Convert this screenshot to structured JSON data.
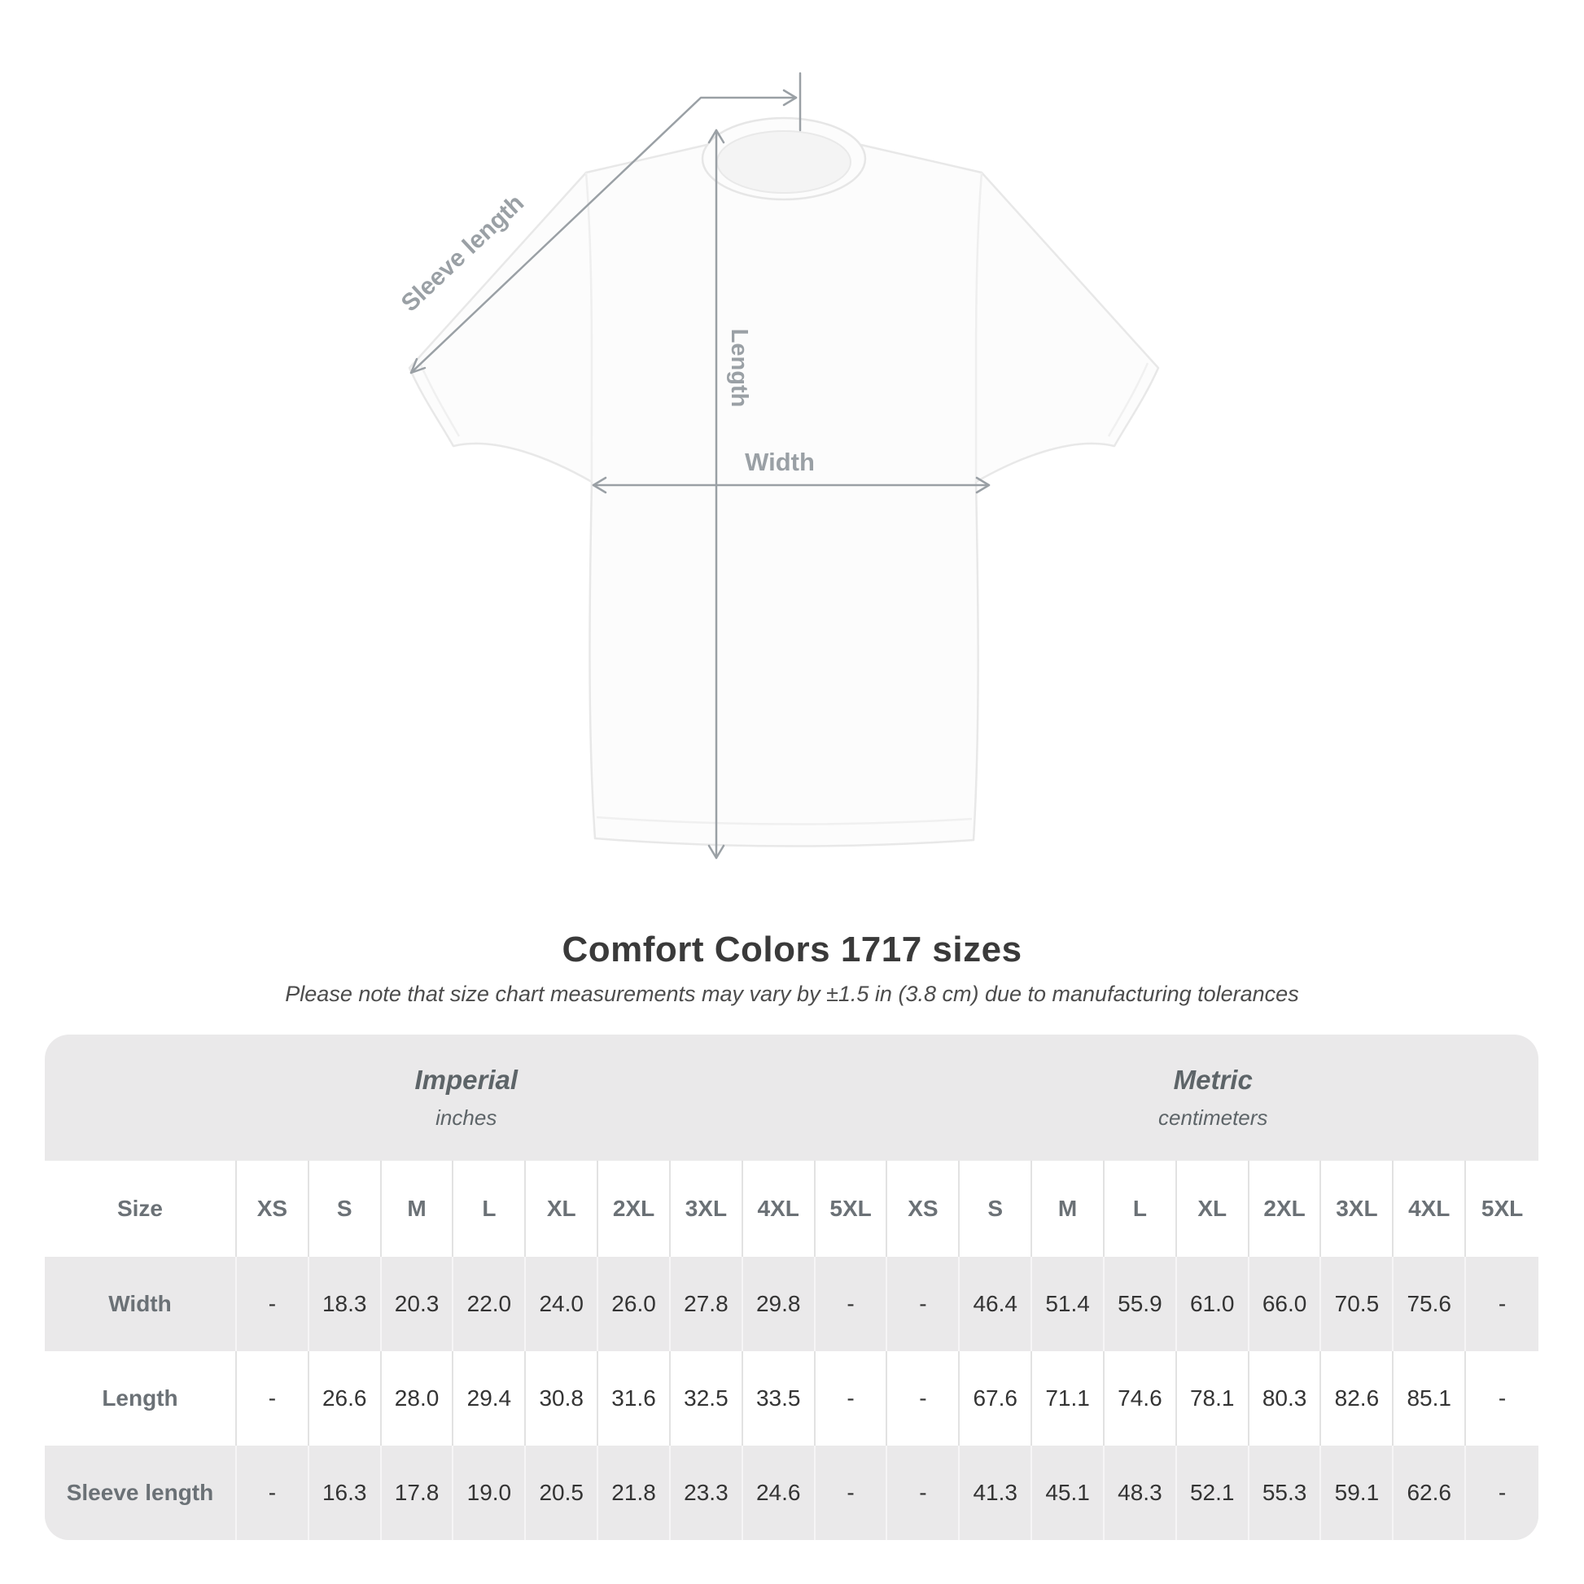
{
  "diagram": {
    "sleeve_length_label": "Sleeve length",
    "length_label": "Length",
    "width_label": "Width"
  },
  "title": "Comfort Colors 1717 sizes",
  "subtitle": "Please note that size chart measurements may vary by ±1.5 in (3.8 cm) due to manufacturing tolerances",
  "table": {
    "size_header": "Size",
    "sections": [
      {
        "label": "Imperial",
        "unit": "inches"
      },
      {
        "label": "Metric",
        "unit": "centimeters"
      }
    ],
    "sizes": [
      "XS",
      "S",
      "M",
      "L",
      "XL",
      "2XL",
      "3XL",
      "4XL",
      "5XL"
    ],
    "rows": [
      {
        "label": "Width",
        "imperial": [
          "-",
          "18.3",
          "20.3",
          "22.0",
          "24.0",
          "26.0",
          "27.8",
          "29.8",
          "-"
        ],
        "metric": [
          "-",
          "46.4",
          "51.4",
          "55.9",
          "61.0",
          "66.0",
          "70.5",
          "75.6",
          "-"
        ]
      },
      {
        "label": "Length",
        "imperial": [
          "-",
          "26.6",
          "28.0",
          "29.4",
          "30.8",
          "31.6",
          "32.5",
          "33.5",
          "-"
        ],
        "metric": [
          "-",
          "67.6",
          "71.1",
          "74.6",
          "78.1",
          "80.3",
          "82.6",
          "85.1",
          "-"
        ]
      },
      {
        "label": "Sleeve length",
        "imperial": [
          "-",
          "16.3",
          "17.8",
          "19.0",
          "20.5",
          "21.8",
          "23.3",
          "24.6",
          "-"
        ],
        "metric": [
          "-",
          "41.3",
          "45.1",
          "48.3",
          "52.1",
          "55.3",
          "59.1",
          "62.6",
          "-"
        ]
      }
    ]
  },
  "colors": {
    "table_background": "#eae9ea",
    "annotation_gray": "#9aa0a5",
    "header_text": "#6b7176",
    "value_text": "#343434",
    "title_text": "#3a3a3a"
  }
}
